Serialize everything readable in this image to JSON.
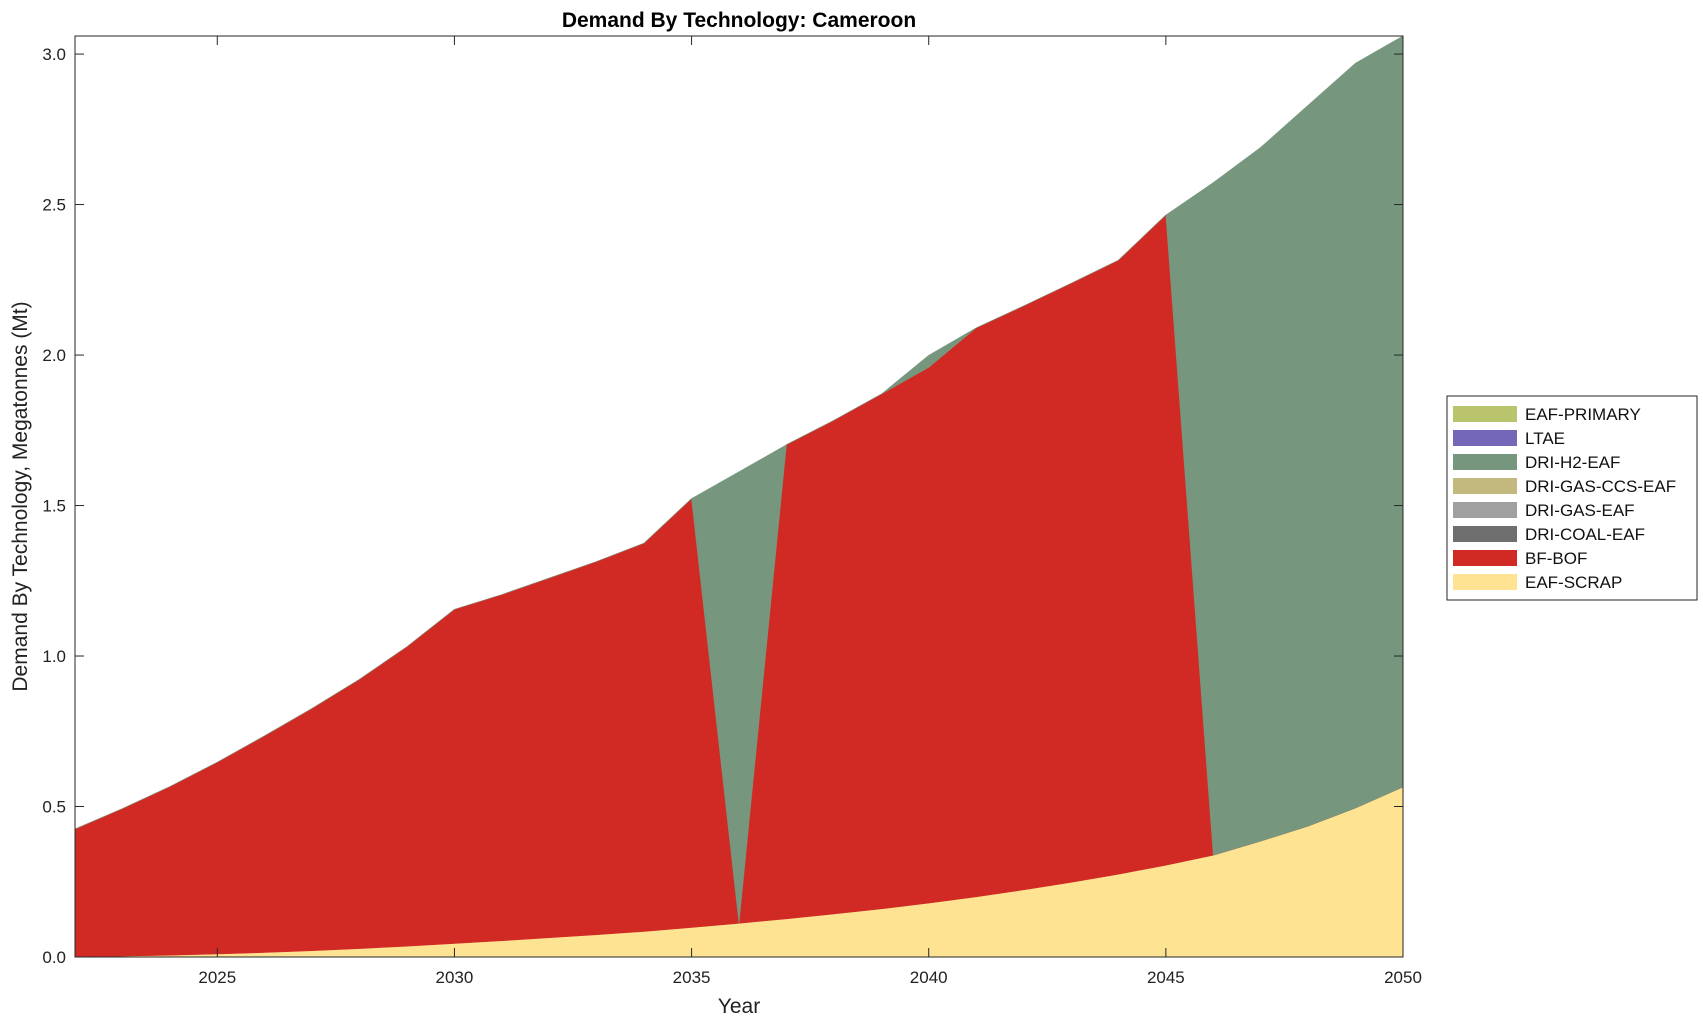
{
  "chart_data": {
    "type": "area",
    "stacked": true,
    "title": "Demand By Technology: Cameroon",
    "xlabel": "Year",
    "ylabel": "Demand By Technology, Megatonnes (Mt)",
    "xlim": [
      2022,
      2050
    ],
    "ylim": [
      0,
      3.06
    ],
    "xticks": [
      2025,
      2030,
      2035,
      2040,
      2045,
      2050
    ],
    "xtick_labels": [
      "2025",
      "2030",
      "2035",
      "2040",
      "2045",
      "2050"
    ],
    "yticks": [
      0,
      0.5,
      1,
      1.5,
      2,
      2.5,
      3
    ],
    "ytick_labels": [
      "0.0",
      "0.5",
      "1.0",
      "1.5",
      "2.0",
      "2.5",
      "3.0"
    ],
    "grid": false,
    "legend_position": "right",
    "x": [
      2022,
      2023,
      2024,
      2025,
      2026,
      2027,
      2028,
      2029,
      2030,
      2031,
      2032,
      2033,
      2034,
      2035,
      2036,
      2037,
      2038,
      2039,
      2040,
      2041,
      2042,
      2043,
      2044,
      2045,
      2046,
      2047,
      2048,
      2049,
      2050
    ],
    "series": [
      {
        "name": "EAF-SCRAP",
        "color": "#fde392",
        "values": [
          0,
          0.003,
          0.006,
          0.01,
          0.015,
          0.021,
          0.028,
          0.036,
          0.045,
          0.054,
          0.064,
          0.074,
          0.085,
          0.098,
          0.112,
          0.127,
          0.143,
          0.16,
          0.179,
          0.2,
          0.223,
          0.248,
          0.275,
          0.305,
          0.338,
          0.385,
          0.435,
          0.495,
          0.565
        ]
      },
      {
        "name": "BF-BOF",
        "color": "#d12a24",
        "values": [
          0.425,
          0.49,
          0.56,
          0.637,
          0.72,
          0.805,
          0.895,
          0.995,
          1.11,
          1.15,
          1.195,
          1.24,
          1.29,
          1.425,
          0,
          1.575,
          1.64,
          1.71,
          1.78,
          1.89,
          1.94,
          1.99,
          2.04,
          2.16,
          0,
          0,
          0,
          0,
          0
        ]
      },
      {
        "name": "DRI-COAL-EAF",
        "color": "#6e6e6e",
        "values": [
          0,
          0,
          0,
          0,
          0,
          0,
          0,
          0,
          0,
          0,
          0,
          0,
          0,
          0,
          0,
          0,
          0,
          0,
          0,
          0,
          0,
          0,
          0,
          0,
          0,
          0,
          0,
          0,
          0
        ]
      },
      {
        "name": "DRI-GAS-EAF",
        "color": "#a0a0a0",
        "values": [
          0,
          0,
          0,
          0,
          0,
          0,
          0,
          0,
          0,
          0,
          0,
          0,
          0,
          0,
          0,
          0,
          0,
          0,
          0,
          0,
          0,
          0,
          0,
          0,
          0,
          0,
          0,
          0,
          0
        ]
      },
      {
        "name": "DRI-GAS-CCS-EAF",
        "color": "#c3b97e",
        "values": [
          0,
          0,
          0,
          0,
          0,
          0,
          0,
          0,
          0,
          0,
          0,
          0,
          0,
          0,
          0,
          0,
          0,
          0,
          0,
          0,
          0,
          0,
          0,
          0,
          0,
          0,
          0,
          0,
          0
        ]
      },
      {
        "name": "DRI-H2-EAF",
        "color": "#76977d",
        "values": [
          0,
          0,
          0,
          0,
          0,
          0,
          0,
          0,
          0,
          0,
          0,
          0,
          0,
          0,
          1.5,
          0,
          0,
          0,
          0.04,
          0,
          0,
          0,
          0,
          0,
          2.235,
          2.305,
          2.395,
          2.475,
          2.495
        ]
      },
      {
        "name": "LTAE",
        "color": "#7467b9",
        "values": [
          0,
          0,
          0,
          0,
          0,
          0,
          0,
          0,
          0,
          0,
          0,
          0,
          0,
          0,
          0,
          0,
          0,
          0,
          0,
          0,
          0,
          0,
          0,
          0,
          0,
          0,
          0,
          0,
          0
        ]
      },
      {
        "name": "EAF-PRIMARY",
        "color": "#bac46c",
        "values": [
          0,
          0,
          0,
          0,
          0,
          0,
          0,
          0,
          0,
          0,
          0,
          0,
          0,
          0,
          0,
          0,
          0,
          0,
          0,
          0,
          0,
          0,
          0,
          0,
          0,
          0,
          0,
          0,
          0
        ]
      }
    ],
    "legend_order": [
      "EAF-PRIMARY",
      "LTAE",
      "DRI-H2-EAF",
      "DRI-GAS-CCS-EAF",
      "DRI-GAS-EAF",
      "DRI-COAL-EAF",
      "BF-BOF",
      "EAF-SCRAP"
    ]
  }
}
